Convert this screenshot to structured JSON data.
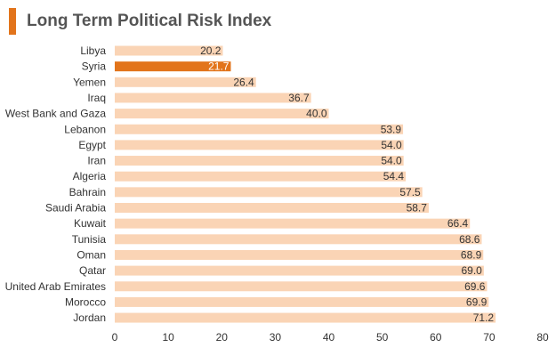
{
  "colors": {
    "accent": "#E2741B",
    "bar": "#FAD4B5",
    "highlight_bar": "#E2741B",
    "title": "#555555",
    "text": "#333333",
    "highlight_text": "#ffffff"
  },
  "chart_data": {
    "type": "bar",
    "orientation": "horizontal",
    "title": "Long Term Political Risk Index",
    "xlabel": "",
    "ylabel": "",
    "xlim": [
      0,
      80
    ],
    "xticks": [
      0,
      10,
      20,
      30,
      40,
      50,
      60,
      70,
      80
    ],
    "grid": false,
    "legend": "none",
    "highlight": "Syria",
    "categories": [
      "Libya",
      "Syria",
      "Yemen",
      "Iraq",
      "West Bank and Gaza",
      "Lebanon",
      "Egypt",
      "Iran",
      "Algeria",
      "Bahrain",
      "Saudi Arabia",
      "Kuwait",
      "Tunisia",
      "Oman",
      "Qatar",
      "United Arab Emirates",
      "Morocco",
      "Jordan"
    ],
    "values": [
      20.2,
      21.7,
      26.4,
      36.7,
      40.0,
      53.9,
      54.0,
      54.0,
      54.4,
      57.5,
      58.7,
      66.4,
      68.6,
      68.9,
      69.0,
      69.6,
      69.9,
      71.2
    ],
    "value_labels": [
      "20.2",
      "21.7",
      "26.4",
      "36.7",
      "40.0",
      "53.9",
      "54.0",
      "54.0",
      "54.4",
      "57.5",
      "58.7",
      "66.4",
      "68.6",
      "68.9",
      "69.0",
      "69.6",
      "69.9",
      "71.2"
    ]
  }
}
